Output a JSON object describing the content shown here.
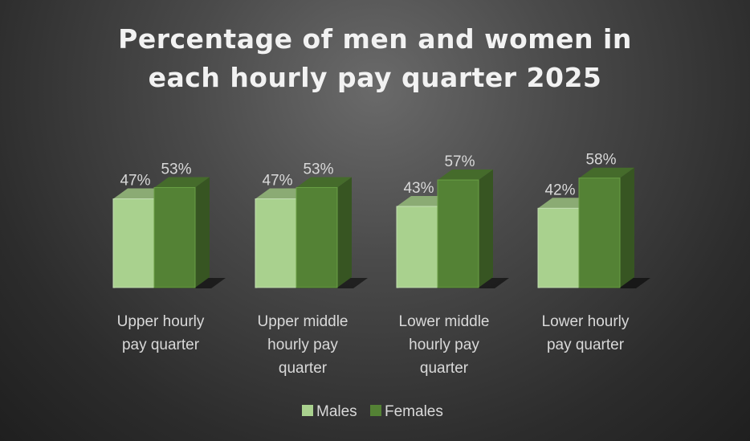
{
  "chart_data": {
    "type": "bar",
    "title_lines": [
      "Percentage of men and women in",
      "each hourly pay quarter 2025"
    ],
    "categories": [
      [
        "Upper hourly",
        "pay quarter"
      ],
      [
        "Upper middle",
        "hourly pay",
        "quarter"
      ],
      [
        "Lower middle",
        "hourly pay",
        "quarter"
      ],
      [
        "Lower hourly",
        "pay quarter"
      ]
    ],
    "series": [
      {
        "name": "Males",
        "values": [
          47,
          47,
          43,
          42
        ],
        "labels": [
          "47%",
          "47%",
          "43%",
          "42%"
        ],
        "color": "#a9d18e"
      },
      {
        "name": "Females",
        "values": [
          53,
          53,
          57,
          58
        ],
        "labels": [
          "53%",
          "53%",
          "57%",
          "58%"
        ],
        "color": "#548235"
      }
    ],
    "ylim": [
      0,
      100
    ],
    "grid": false,
    "legend_position": "bottom",
    "style": "3d-column"
  }
}
